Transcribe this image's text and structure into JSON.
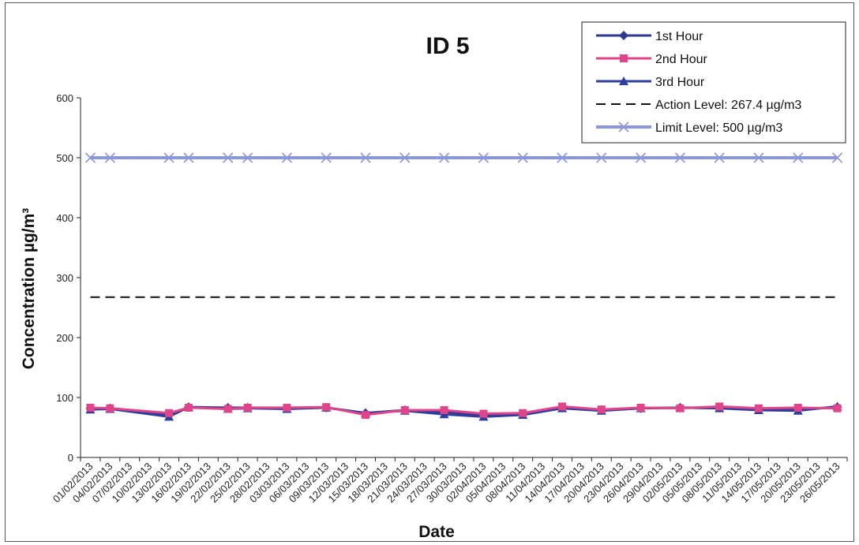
{
  "chart_data": {
    "type": "line",
    "title": "ID 5",
    "xlabel": "Date",
    "ylabel": "Concentration  µg/m³",
    "ylim": [
      0,
      600
    ],
    "yticks": [
      "0",
      "100",
      "200",
      "300",
      "400",
      "500",
      "600"
    ],
    "grid": false,
    "legend_position": "top-right",
    "categories": [
      "01/02/2013",
      "04/02/2013",
      "07/02/2013",
      "10/02/2013",
      "13/02/2013",
      "16/02/2013",
      "19/02/2013",
      "22/02/2013",
      "25/02/2013",
      "28/02/2013",
      "03/03/2013",
      "06/03/2013",
      "09/03/2013",
      "12/03/2013",
      "15/03/2013",
      "18/03/2013",
      "21/03/2013",
      "24/03/2013",
      "27/03/2013",
      "30/03/2013",
      "02/04/2013",
      "05/04/2013",
      "08/04/2013",
      "11/04/2013",
      "14/04/2013",
      "17/04/2013",
      "20/04/2013",
      "23/04/2013",
      "26/04/2013",
      "29/04/2013",
      "02/05/2013",
      "05/05/2013",
      "08/05/2013",
      "11/05/2013",
      "14/05/2013",
      "17/05/2013",
      "20/05/2013",
      "23/05/2013",
      "26/05/2013"
    ],
    "points": [
      {
        "date": "01/02/2013",
        "h1": 82,
        "h2": 83,
        "h3": 80
      },
      {
        "date": "04/02/2013",
        "h1": 82,
        "h2": 82,
        "h3": 81
      },
      {
        "date": "13/02/2013",
        "h1": 71,
        "h2": 74,
        "h3": 68
      },
      {
        "date": "16/02/2013",
        "h1": 84,
        "h2": 83,
        "h3": 84
      },
      {
        "date": "22/02/2013",
        "h1": 83,
        "h2": 81,
        "h3": 81
      },
      {
        "date": "25/02/2013",
        "h1": 83,
        "h2": 83,
        "h3": 82
      },
      {
        "date": "03/03/2013",
        "h1": 82,
        "h2": 83,
        "h3": 81
      },
      {
        "date": "09/03/2013",
        "h1": 83,
        "h2": 84,
        "h3": 83
      },
      {
        "date": "15/03/2013",
        "h1": 74,
        "h2": 71,
        "h3": 74
      },
      {
        "date": "21/03/2013",
        "h1": 79,
        "h2": 79,
        "h3": 78
      },
      {
        "date": "27/03/2013",
        "h1": 76,
        "h2": 79,
        "h3": 72
      },
      {
        "date": "02/04/2013",
        "h1": 71,
        "h2": 73,
        "h3": 68
      },
      {
        "date": "08/04/2013",
        "h1": 73,
        "h2": 74,
        "h3": 71
      },
      {
        "date": "14/04/2013",
        "h1": 83,
        "h2": 85,
        "h3": 82
      },
      {
        "date": "20/04/2013",
        "h1": 79,
        "h2": 80,
        "h3": 78
      },
      {
        "date": "26/04/2013",
        "h1": 82,
        "h2": 83,
        "h3": 82
      },
      {
        "date": "02/05/2013",
        "h1": 83,
        "h2": 82,
        "h3": 83
      },
      {
        "date": "08/05/2013",
        "h1": 83,
        "h2": 85,
        "h3": 82
      },
      {
        "date": "14/05/2013",
        "h1": 80,
        "h2": 82,
        "h3": 79
      },
      {
        "date": "20/05/2013",
        "h1": 80,
        "h2": 83,
        "h3": 78
      },
      {
        "date": "26/05/2013",
        "h1": 84,
        "h2": 82,
        "h3": 85
      }
    ],
    "series": [
      {
        "name": "1st Hour",
        "key": "h1",
        "color": "#2b3990",
        "marker": "diamond"
      },
      {
        "name": "2nd Hour",
        "key": "h2",
        "color": "#e0458a",
        "marker": "square"
      },
      {
        "name": "3rd Hour",
        "key": "h3",
        "color": "#2e3d9e",
        "marker": "triangle"
      },
      {
        "name": "Action Level: 267.4 µg/m3",
        "constant": 267.4,
        "color": "#111111",
        "style": "dashed"
      },
      {
        "name": "Limit Level: 500 µg/m3",
        "constant": 500,
        "color": "#8b96db",
        "marker": "x"
      }
    ]
  }
}
